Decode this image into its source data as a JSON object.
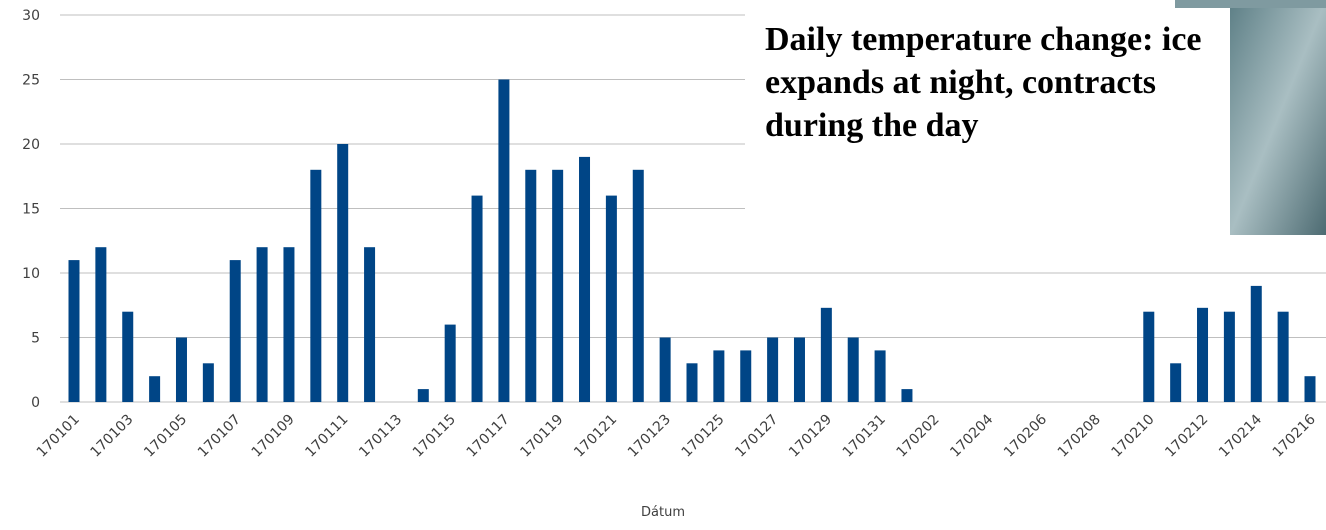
{
  "chart_data": {
    "type": "bar",
    "annotation": "Daily temperature change: ice expands at night, contracts during the day",
    "x_label": "Dátum",
    "categories": [
      "170101",
      null,
      "170103",
      null,
      "170105",
      null,
      "170107",
      null,
      "170109",
      null,
      "170111",
      null,
      "170113",
      null,
      "170115",
      null,
      "170117",
      null,
      "170119",
      null,
      "170121",
      null,
      "170123",
      null,
      "170125",
      null,
      "170127",
      null,
      "170129",
      null,
      "170131",
      null,
      "170202",
      null,
      "170204",
      null,
      "170206",
      null,
      "170208",
      null,
      "170210",
      null,
      "170212",
      null,
      "170214",
      null,
      "170216"
    ],
    "values": [
      11,
      12,
      7,
      2,
      5,
      3,
      11,
      12,
      12,
      18,
      20,
      12,
      null,
      1,
      6,
      16,
      25,
      18,
      18,
      19,
      16,
      18,
      5,
      3,
      4,
      4,
      5,
      5,
      7.3,
      5,
      4,
      1,
      null,
      null,
      null,
      null,
      null,
      null,
      null,
      null,
      7,
      3,
      7.3,
      7,
      9,
      7,
      2
    ],
    "color": "#004586",
    "ylim": [
      0,
      30
    ],
    "yticks": [
      0,
      5,
      10,
      15,
      20,
      25,
      30
    ],
    "grid": true
  }
}
